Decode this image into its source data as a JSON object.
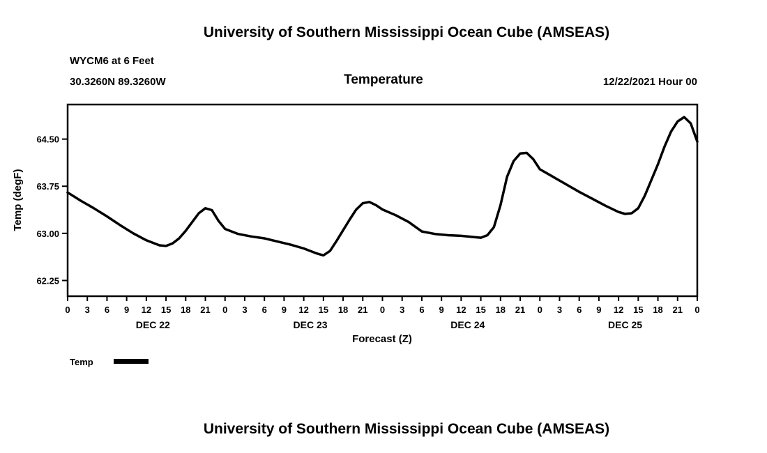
{
  "page": {
    "main_title": "University of Southern Mississippi Ocean Cube (AMSEAS)",
    "bottom_title": "University of Southern Mississippi Ocean Cube (AMSEAS)"
  },
  "header": {
    "station": "WYCM6 at 6 Feet",
    "coords": "30.3260N  89.3260W",
    "chart_title": "Temperature",
    "run_time": "12/22/2021 Hour 00"
  },
  "chart_data": {
    "type": "line",
    "title": "Temperature",
    "xlabel": "Forecast (Z)",
    "ylabel": "Temp (degF)",
    "legend_label": "Temp",
    "line_color": "#000000",
    "xlim": [
      0,
      96
    ],
    "ylim": [
      62.0,
      65.05
    ],
    "yticks": [
      62.25,
      63.0,
      63.75,
      64.5
    ],
    "ytick_labels": [
      "62.25",
      "63.00",
      "63.75",
      "64.50"
    ],
    "xticks": [
      0,
      3,
      6,
      9,
      12,
      15,
      18,
      21,
      24,
      27,
      30,
      33,
      36,
      39,
      42,
      45,
      48,
      51,
      54,
      57,
      60,
      63,
      66,
      69,
      72,
      75,
      78,
      81,
      84,
      87,
      90,
      93,
      96
    ],
    "xtick_labels": [
      "0",
      "3",
      "6",
      "9",
      "12",
      "15",
      "18",
      "21",
      "0",
      "3",
      "6",
      "9",
      "12",
      "15",
      "18",
      "21",
      "0",
      "3",
      "6",
      "9",
      "12",
      "15",
      "18",
      "21",
      "0",
      "3",
      "6",
      "9",
      "12",
      "15",
      "18",
      "21",
      "0"
    ],
    "day_labels": [
      {
        "label": "DEC 22",
        "hour": 13
      },
      {
        "label": "DEC 23",
        "hour": 37
      },
      {
        "label": "DEC 24",
        "hour": 61
      },
      {
        "label": "DEC 25",
        "hour": 85
      }
    ],
    "series": [
      {
        "name": "Temp",
        "color": "#000000",
        "x": [
          0,
          2,
          4,
          6,
          8,
          10,
          12,
          14,
          15,
          16,
          17,
          18,
          19,
          20,
          21,
          22,
          23,
          24,
          26,
          28,
          30,
          32,
          34,
          36,
          38,
          39,
          40,
          41,
          42,
          43,
          44,
          45,
          46,
          47,
          48,
          50,
          52,
          54,
          56,
          58,
          60,
          62,
          63,
          64,
          65,
          66,
          67,
          68,
          69,
          70,
          71,
          72,
          74,
          76,
          78,
          80,
          82,
          84,
          85,
          86,
          87,
          88,
          89,
          90,
          91,
          92,
          93,
          94,
          95,
          96
        ],
        "y": [
          63.65,
          63.52,
          63.4,
          63.27,
          63.13,
          63.0,
          62.89,
          62.81,
          62.8,
          62.84,
          62.92,
          63.04,
          63.18,
          63.32,
          63.4,
          63.37,
          63.2,
          63.07,
          62.99,
          62.95,
          62.92,
          62.87,
          62.82,
          62.76,
          62.68,
          62.65,
          62.72,
          62.88,
          63.05,
          63.22,
          63.38,
          63.48,
          63.5,
          63.45,
          63.38,
          63.29,
          63.18,
          63.03,
          62.99,
          62.97,
          62.96,
          62.94,
          62.93,
          62.97,
          63.1,
          63.45,
          63.9,
          64.15,
          64.27,
          64.28,
          64.18,
          64.02,
          63.9,
          63.78,
          63.66,
          63.55,
          63.44,
          63.34,
          63.31,
          63.32,
          63.4,
          63.6,
          63.85,
          64.1,
          64.38,
          64.62,
          64.78,
          64.85,
          64.75,
          64.46
        ]
      }
    ]
  }
}
